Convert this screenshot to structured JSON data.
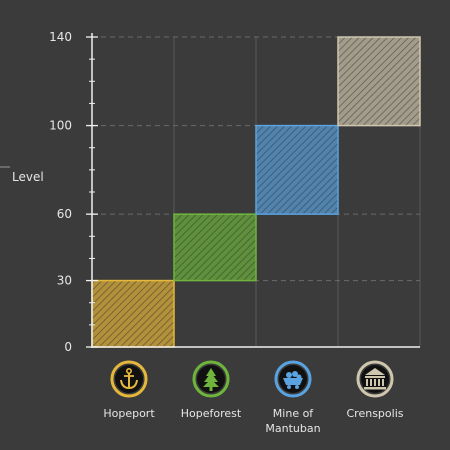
{
  "chart_data": {
    "type": "bar",
    "ylabel": "Level",
    "ylim": [
      0,
      140
    ],
    "yticks": [
      0,
      30,
      60,
      100,
      140
    ],
    "grid": true,
    "categories": [
      {
        "name": "Hopeport",
        "lines": [
          "Hopeport"
        ],
        "range": [
          0,
          30
        ],
        "color": "#e5b73b",
        "icon": "anchor-icon"
      },
      {
        "name": "Hopeforest",
        "lines": [
          "Hopeforest"
        ],
        "range": [
          30,
          60
        ],
        "color": "#6fb53c",
        "icon": "pine-tree-icon"
      },
      {
        "name": "Mine of Mantuban",
        "lines": [
          "Mine of",
          "Mantuban"
        ],
        "range": [
          60,
          100
        ],
        "color": "#5aa2e0",
        "icon": "mine-cart-icon"
      },
      {
        "name": "Crenspolis",
        "lines": [
          "Crenspolis"
        ],
        "range": [
          100,
          140
        ],
        "color": "#cfc6ae",
        "icon": "city-hall-icon"
      }
    ]
  }
}
